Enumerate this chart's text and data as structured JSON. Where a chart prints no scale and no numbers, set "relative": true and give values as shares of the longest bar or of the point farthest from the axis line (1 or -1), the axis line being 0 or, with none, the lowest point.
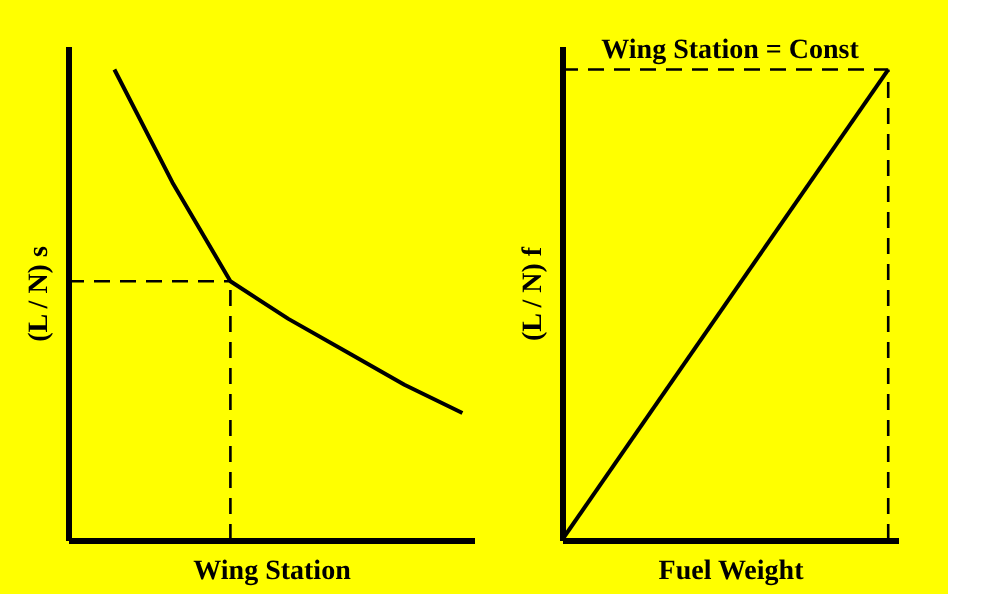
{
  "chart_data": [
    {
      "type": "line",
      "relative": true,
      "xlabel": "Wing Station",
      "ylabel": "(L / N) s",
      "tick_labels": false,
      "categories": [
        null,
        null,
        null,
        null,
        null,
        null,
        null
      ],
      "ref_lines": [
        {
          "axis": "y",
          "value": 0.55,
          "color": "#000000",
          "line_style": "dashed"
        }
      ],
      "series": [
        {
          "color": "#000000",
          "values": [
            1,
            0.76,
            0.55,
            0.47,
            0.4,
            0.33,
            0.27
          ]
        }
      ]
    },
    {
      "type": "line",
      "relative": true,
      "xlabel": "Fuel Weight",
      "ylabel": "(L / N) f",
      "tick_labels": false,
      "categories": [
        null,
        null
      ],
      "annotations": [
        "Wing Station = Const"
      ],
      "ref_lines": [
        {
          "axis": "y",
          "value": 1,
          "color": "#000000",
          "line_style": "dashed"
        }
      ],
      "series": [
        {
          "color": "#000000",
          "values": [
            0,
            1
          ]
        }
      ]
    }
  ]
}
